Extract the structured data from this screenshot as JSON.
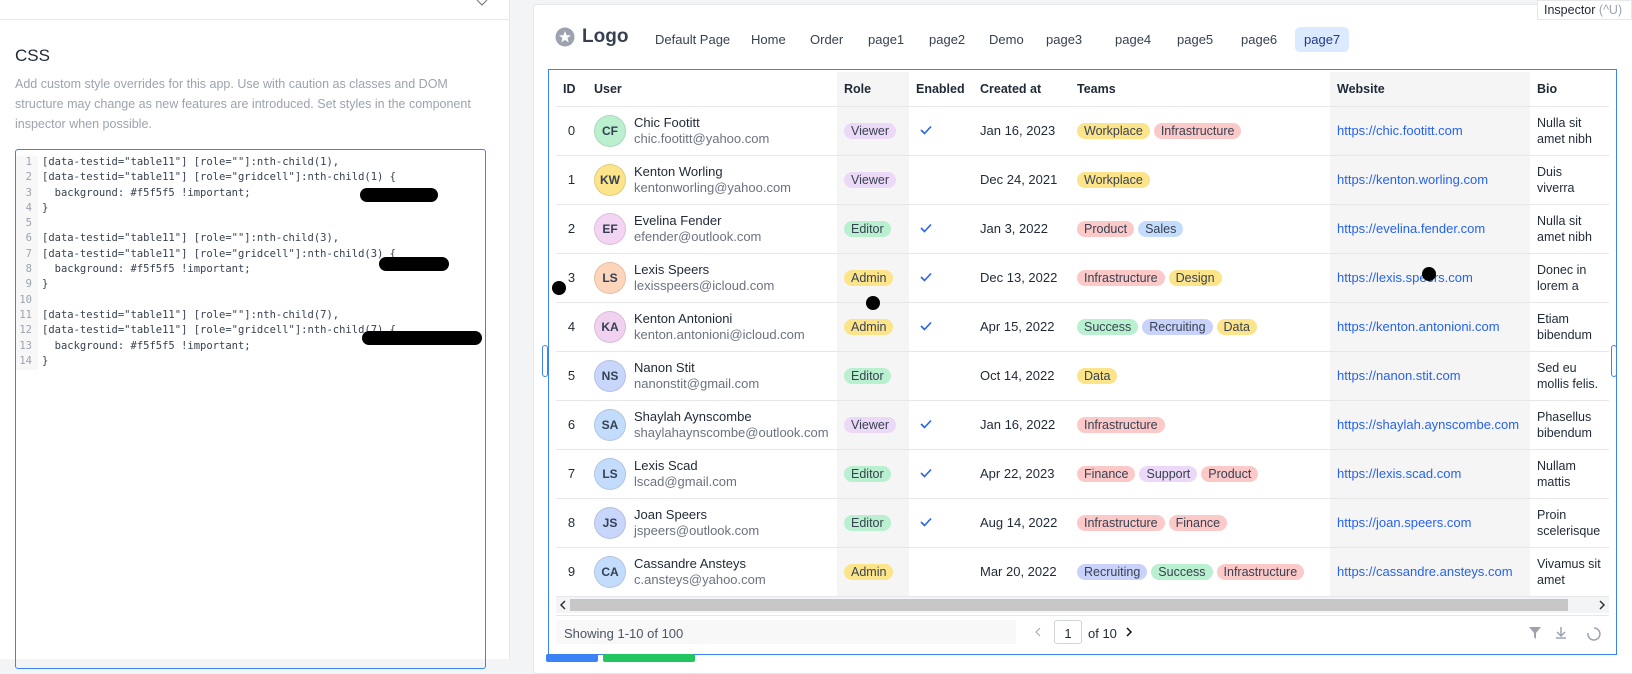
{
  "editor": {
    "title": "CSS",
    "description": "Add custom style overrides for this app. Use with caution as classes and DOM structure may change as new features are introduced. Set styles in the component inspector when possible.",
    "lines": [
      {
        "n": 1,
        "text": "[data-testid=\"table11\"] [role=\"\"]:nth-child(1),"
      },
      {
        "n": 2,
        "text": "[data-testid=\"table11\"] [role=\"gridcell\"]:nth-child(1) {"
      },
      {
        "n": 3,
        "text": "  background: #f5f5f5 !important;"
      },
      {
        "n": 4,
        "text": "}"
      },
      {
        "n": 5
      },
      {
        "n": 6,
        "text": "[data-testid=\"table11\"] [role=\"\"]:nth-child(3),"
      },
      {
        "n": 7,
        "text": "[data-testid=\"table11\"] [role=\"gridcell\"]:nth-child(3) {"
      },
      {
        "n": 8,
        "text": "  background: #f5f5f5 !important;"
      },
      {
        "n": 9,
        "text": "}"
      },
      {
        "n": 10
      },
      {
        "n": 11,
        "text": "[data-testid=\"table11\"] [role=\"\"]:nth-child(7),"
      },
      {
        "n": 12,
        "text": "[data-testid=\"table11\"] [role=\"gridcell\"]:nth-child(7) {"
      },
      {
        "n": 13,
        "text": "  background: #f5f5f5 !important;"
      },
      {
        "n": 14,
        "text": "}"
      }
    ]
  },
  "inspector": {
    "label": "Inspector",
    "shortcut": "(^U)"
  },
  "nav": {
    "logo": "Logo",
    "pages": [
      "Default Page",
      "Home",
      "Order",
      "page1",
      "page2",
      "Demo",
      "page3",
      "page4",
      "page5",
      "page6",
      "page7"
    ],
    "active": 10
  },
  "table": {
    "columns": [
      "ID",
      "User",
      "Role",
      "Enabled",
      "Created at",
      "Teams",
      "Website",
      "Bio"
    ],
    "role_colors": {
      "Viewer": "#ecd9f7",
      "Editor": "#b9f0cf",
      "Admin": "#fce48a"
    },
    "team_colors": {
      "Workplace": "#fce48a",
      "Infrastructure": "#fcc9c9",
      "Product": "#fcc9c9",
      "Sales": "#c4dcfb",
      "Design": "#fce48a",
      "Success": "#b9f0cf",
      "Recruiting": "#c9d2fb",
      "Data": "#fce48a",
      "Finance": "#fcc9c9",
      "Support": "#ecd9f7"
    },
    "rows": [
      {
        "id": 0,
        "initials": "CF",
        "avatar": "#bbf0cf",
        "name": "Chic Footitt",
        "email": "chic.footitt@yahoo.com",
        "role": "Viewer",
        "enabled": true,
        "created": "Jan 16, 2023",
        "teams": [
          "Workplace",
          "Infrastructure"
        ],
        "website": "https://chic.footitt.com",
        "bio": "Nulla sit amet nibh at augue"
      },
      {
        "id": 1,
        "initials": "KW",
        "avatar": "#fce48a",
        "name": "Kenton Worling",
        "email": "kentonworling@yahoo.com",
        "role": "Viewer",
        "enabled": false,
        "created": "Dec 24, 2021",
        "teams": [
          "Workplace"
        ],
        "website": "https://kenton.worling.com",
        "bio": "Duis viverra elementum ..."
      },
      {
        "id": 2,
        "initials": "EF",
        "avatar": "#f3d4f3",
        "name": "Evelina Fender",
        "email": "efender@outlook.com",
        "role": "Editor",
        "enabled": true,
        "created": "Jan 3, 2022",
        "teams": [
          "Product",
          "Sales"
        ],
        "website": "https://evelina.fender.com",
        "bio": "Nulla sit amet nibh at augue"
      },
      {
        "id": 3,
        "initials": "LS",
        "avatar": "#fcd5bb",
        "name": "Lexis Speers",
        "email": "lexisspeers@icloud.com",
        "role": "Admin",
        "enabled": true,
        "created": "Dec 13, 2022",
        "teams": [
          "Infrastructure",
          "Design"
        ],
        "website": "https://lexis.speers.com",
        "bio": "Donec in lorem a dolor"
      },
      {
        "id": 4,
        "initials": "KA",
        "avatar": "#f0d2f0",
        "name": "Kenton Antonioni",
        "email": "kenton.antonioni@icloud.com",
        "role": "Admin",
        "enabled": true,
        "created": "Apr 15, 2022",
        "teams": [
          "Success",
          "Recruiting",
          "Data"
        ],
        "website": "https://kenton.antonioni.com",
        "bio": "Etiam bibendum ..."
      },
      {
        "id": 5,
        "initials": "NS",
        "avatar": "#c9d6fb",
        "name": "Nanon Stit",
        "email": "nanonstit@gmail.com",
        "role": "Editor",
        "enabled": false,
        "created": "Oct 14, 2022",
        "teams": [
          "Data"
        ],
        "website": "https://nanon.stit.com",
        "bio": "Sed eu mollis felis. Nulla si"
      },
      {
        "id": 6,
        "initials": "SA",
        "avatar": "#c4dcfb",
        "name": "Shaylah Aynscombe",
        "email": "shaylahaynscombe@outlook.com",
        "role": "Viewer",
        "enabled": true,
        "created": "Jan 16, 2022",
        "teams": [
          "Infrastructure"
        ],
        "website": "https://shaylah.aynscombe.com",
        "bio": "Phasellus bibendum ..."
      },
      {
        "id": 7,
        "initials": "LS",
        "avatar": "#c4dcfb",
        "name": "Lexis Scad",
        "email": "lscad@gmail.com",
        "role": "Editor",
        "enabled": true,
        "created": "Apr 22, 2023",
        "teams": [
          "Finance",
          "Support",
          "Product"
        ],
        "website": "https://lexis.scad.com",
        "bio": "Nullam mattis ultricies met"
      },
      {
        "id": 8,
        "initials": "JS",
        "avatar": "#c9d6fb",
        "name": "Joan Speers",
        "email": "jspeers@outlook.com",
        "role": "Editor",
        "enabled": true,
        "created": "Aug 14, 2022",
        "teams": [
          "Infrastructure",
          "Finance"
        ],
        "website": "https://joan.speers.com",
        "bio": "Proin scelerisque ..."
      },
      {
        "id": 9,
        "initials": "CA",
        "avatar": "#c4dcfb",
        "name": "Cassandre Ansteys",
        "email": "c.ansteys@yahoo.com",
        "role": "Admin",
        "enabled": false,
        "created": "Mar 20, 2022",
        "teams": [
          "Recruiting",
          "Success",
          "Infrastructure"
        ],
        "website": "https://cassandre.ansteys.com",
        "bio": "Vivamus sit amet metus"
      }
    ]
  },
  "footer": {
    "showing": "Showing 1-10 of 100",
    "page": 1,
    "of": "of 10"
  }
}
